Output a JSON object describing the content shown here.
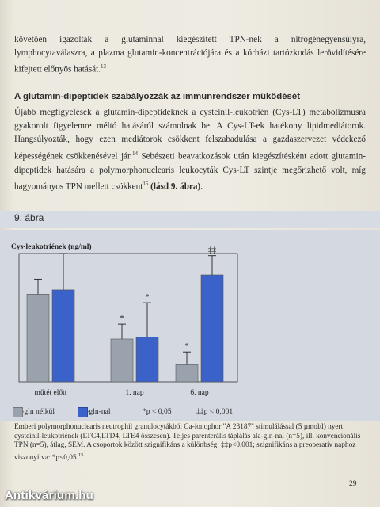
{
  "intro_text": "követően igazolták a glutaminnal kiegészített TPN-nek a nitrogénegyensúlyra, lymphocytaválaszra, a plazma glutamin-koncentrációjára és a kórházi tartózkodás lerövidítésére kifejtett előnyös hatását.",
  "intro_ref": "13",
  "section_title": "A glutamin-dipeptidek szabályozzák az immunrendszer működését",
  "body": {
    "para1": "Újabb megfigyelések a glutamin-dipeptideknek a cysteinil-leukotrién (Cys-LT) metabolizmusra gyakorolt figyelemre méltó hatásáról számolnak be. A Cys-LT-ek hatékony lipidmediátorok. Hangsúlyozták, hogy ezen mediátorok csökkent felszabadulása a gazdaszervezet védekező képességének csökkenésével jár.",
    "para1_ref": "14",
    "para2": "Sebészeti beavatkozások után kiegészítésként adott glutamin-dipeptidek hatására a polymorphonuclearis leukocyták Cys-LT szintje megőrizhető volt, míg hagyományos TPN mellett csökkent",
    "para2_ref": "15",
    "para2_bold": "(lásd 9. ábra)",
    "para2_end": "."
  },
  "figure_label": "9. ábra",
  "chart_data": {
    "type": "bar",
    "ylabel": "Cys-leukotriének (ng/ml)",
    "categories": [
      "műtét előtt",
      "1. nap",
      "6. nap"
    ],
    "ylim": [
      0,
      30
    ],
    "series": [
      {
        "name": "ala-gln nélkül",
        "values": [
          20.5,
          10,
          4
        ],
        "errors": [
          3.5,
          3.5,
          3
        ],
        "color": "#9aa3ad"
      },
      {
        "name": "ala-gln-nal",
        "values": [
          21.5,
          10.5,
          25
        ],
        "errors": [
          8.5,
          8,
          4.5
        ],
        "color": "#3a62c9"
      }
    ],
    "annotations": [
      {
        "category": 1,
        "series": 0,
        "text": "*"
      },
      {
        "category": 1,
        "series": 1,
        "text": "*"
      },
      {
        "category": 2,
        "series": 0,
        "text": "*"
      },
      {
        "category": 2,
        "series": 1,
        "text": "‡‡"
      }
    ],
    "grid": false
  },
  "legend": {
    "item1": "ala-gln nélkül",
    "item2": "ala-gln-nal",
    "sig1": "*p < 0,05",
    "sig2": "‡‡p < 0,001"
  },
  "caption": "Emberi polymorphonuclearis neutrophil granulocytákból Ca-ionophor \"A 23187\" stimulálással (5 µmol/l) nyert cysteinil-leukotriének (LTC4,LTD4, LTE4 összesen). Teljes parenterális táplálás ala-gln-nal (n=5), ill. konvencionális TPN (n=5), átlag, SEM. A csoportok között szignifikáns a különbség: ‡‡p<0,001; szignifikáns a preoperatív naphoz viszonyítva: *p<0,05.",
  "caption_ref": "15",
  "page_number": "29",
  "watermark": "Antikvárium.hu",
  "colors": {
    "bar_gray": "#9aa3ad",
    "bar_blue": "#3a62c9",
    "panel_bg": "#d4d8e1"
  }
}
